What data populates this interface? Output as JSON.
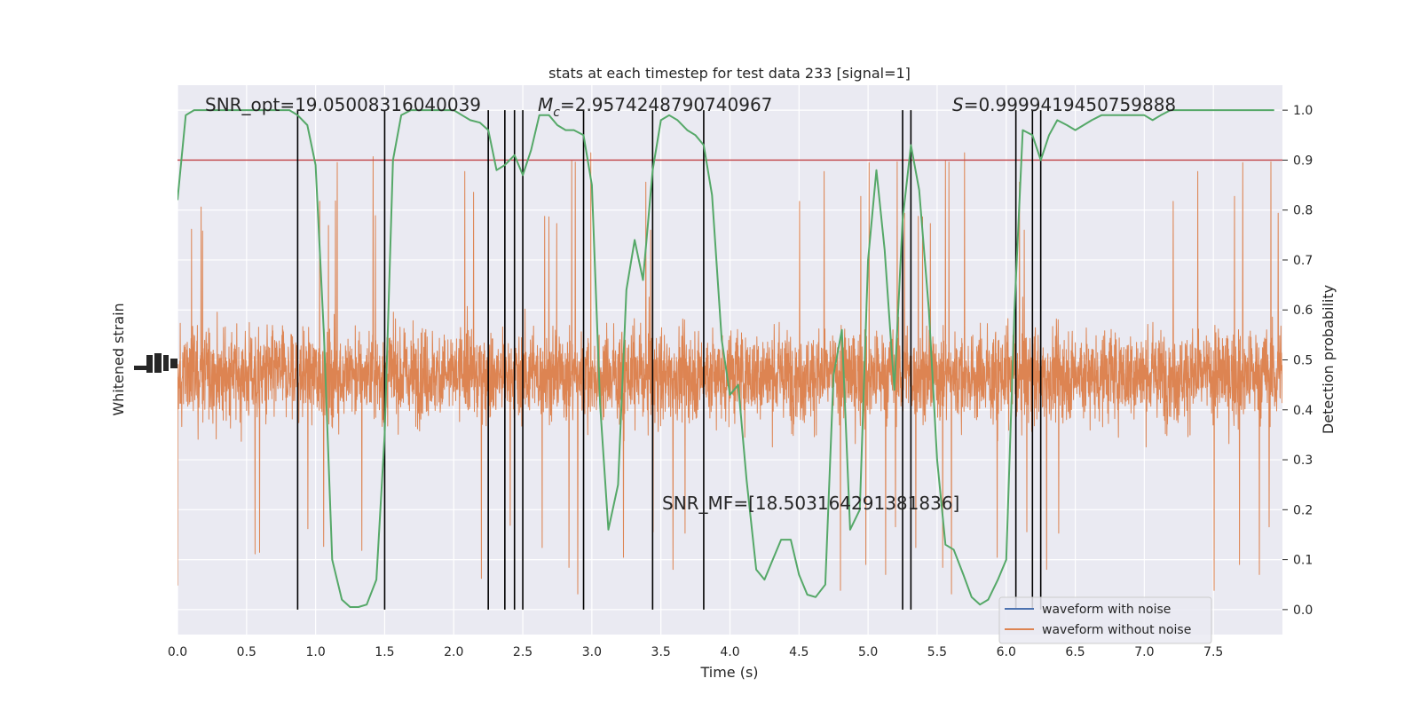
{
  "chart_data": {
    "type": "line",
    "title": "stats at each timestep for test data 233 [signal=1]",
    "xlabel": "Time (s)",
    "ylabel_left": "Whitened strain",
    "ylabel_right": "Detection probability",
    "xlim": [
      0.0,
      8.0
    ],
    "ylim_right": [
      -0.05,
      1.05
    ],
    "xticks": [
      "0.0",
      "0.5",
      "1.0",
      "1.5",
      "2.0",
      "2.5",
      "3.0",
      "3.5",
      "4.0",
      "4.5",
      "5.0",
      "5.5",
      "6.0",
      "6.5",
      "7.0",
      "7.5"
    ],
    "yticks_right": [
      "0.0",
      "0.1",
      "0.2",
      "0.3",
      "0.4",
      "0.5",
      "0.6",
      "0.7",
      "0.8",
      "0.9",
      "1.0"
    ],
    "grid": true,
    "legend": {
      "position": "bottom-right",
      "entries": [
        {
          "label": "waveform with noise",
          "color": "#4c72b0"
        },
        {
          "label": "waveform without noise",
          "color": "#dd8452"
        }
      ]
    },
    "annotations": {
      "snr_opt": "SNR_opt=19.05008316040039",
      "mc_symbol": "M",
      "mc_sub": "c",
      "mc_value": "=2.9574248790740967",
      "s_symbol": "S",
      "s_value": "=0.9999419450759888",
      "snr_mf": "SNR_MF=[18.503164291381836]"
    },
    "threshold": 0.9,
    "threshold_color": "#c44e52",
    "probability_color": "#55a868",
    "strain_color": "#dd8452",
    "strain_band": {
      "center": 0.47,
      "typical_half_width": 0.17,
      "peak_half_width": 0.38
    },
    "vertical_lines_x": [
      0.87,
      1.5,
      2.25,
      2.37,
      2.44,
      2.5,
      2.94,
      3.44,
      3.81,
      5.25,
      5.31,
      6.07,
      6.19,
      6.25
    ],
    "detection_probability": {
      "x": [
        0.0,
        0.06,
        0.12,
        0.19,
        0.25,
        0.31,
        0.37,
        0.44,
        0.5,
        0.56,
        0.62,
        0.69,
        0.75,
        0.81,
        0.87,
        0.94,
        1.0,
        1.06,
        1.12,
        1.19,
        1.25,
        1.31,
        1.37,
        1.44,
        1.5,
        1.56,
        1.62,
        1.69,
        1.75,
        1.81,
        1.87,
        1.94,
        2.0,
        2.06,
        2.12,
        2.19,
        2.25,
        2.31,
        2.37,
        2.44,
        2.5,
        2.56,
        2.62,
        2.69,
        2.75,
        2.81,
        2.87,
        2.94,
        3.0,
        3.06,
        3.12,
        3.19,
        3.25,
        3.31,
        3.37,
        3.44,
        3.5,
        3.56,
        3.62,
        3.69,
        3.75,
        3.81,
        3.87,
        3.94,
        4.0,
        4.06,
        4.12,
        4.19,
        4.25,
        4.31,
        4.37,
        4.44,
        4.5,
        4.56,
        4.62,
        4.69,
        4.75,
        4.81,
        4.87,
        4.94,
        5.0,
        5.06,
        5.12,
        5.19,
        5.25,
        5.31,
        5.37,
        5.44,
        5.5,
        5.56,
        5.62,
        5.69,
        5.75,
        5.81,
        5.87,
        5.94,
        6.0,
        6.06,
        6.12,
        6.19,
        6.25,
        6.31,
        6.37,
        6.44,
        6.5,
        6.56,
        6.62,
        6.69,
        6.75,
        6.81,
        6.87,
        6.94,
        7.0,
        7.06,
        7.12,
        7.19,
        7.25,
        7.31,
        7.37,
        7.44,
        7.5,
        7.56,
        7.62,
        7.69,
        7.75,
        7.81,
        7.87,
        7.94
      ],
      "y": [
        0.82,
        0.99,
        1.0,
        1.0,
        1.0,
        1.0,
        1.0,
        1.0,
        1.0,
        1.0,
        1.0,
        1.0,
        1.0,
        1.0,
        0.99,
        0.97,
        0.89,
        0.55,
        0.1,
        0.02,
        0.005,
        0.005,
        0.01,
        0.06,
        0.35,
        0.9,
        0.99,
        1.0,
        1.0,
        1.0,
        1.0,
        1.0,
        1.0,
        0.99,
        0.98,
        0.975,
        0.96,
        0.88,
        0.89,
        0.91,
        0.87,
        0.92,
        0.99,
        0.99,
        0.97,
        0.96,
        0.96,
        0.95,
        0.85,
        0.41,
        0.16,
        0.25,
        0.64,
        0.74,
        0.66,
        0.88,
        0.98,
        0.99,
        0.98,
        0.96,
        0.95,
        0.93,
        0.83,
        0.54,
        0.43,
        0.45,
        0.26,
        0.08,
        0.06,
        0.1,
        0.14,
        0.14,
        0.07,
        0.03,
        0.025,
        0.05,
        0.47,
        0.56,
        0.16,
        0.2,
        0.7,
        0.88,
        0.72,
        0.44,
        0.78,
        0.93,
        0.84,
        0.6,
        0.3,
        0.13,
        0.12,
        0.07,
        0.025,
        0.01,
        0.02,
        0.06,
        0.1,
        0.6,
        0.96,
        0.95,
        0.9,
        0.95,
        0.98,
        0.97,
        0.96,
        0.97,
        0.98,
        0.99,
        0.99,
        0.99,
        0.99,
        0.99,
        0.99,
        0.98,
        0.99,
        1.0,
        1.0,
        1.0,
        1.0,
        1.0,
        1.0,
        1.0,
        1.0,
        1.0,
        1.0,
        1.0,
        1.0,
        1.0
      ]
    }
  }
}
